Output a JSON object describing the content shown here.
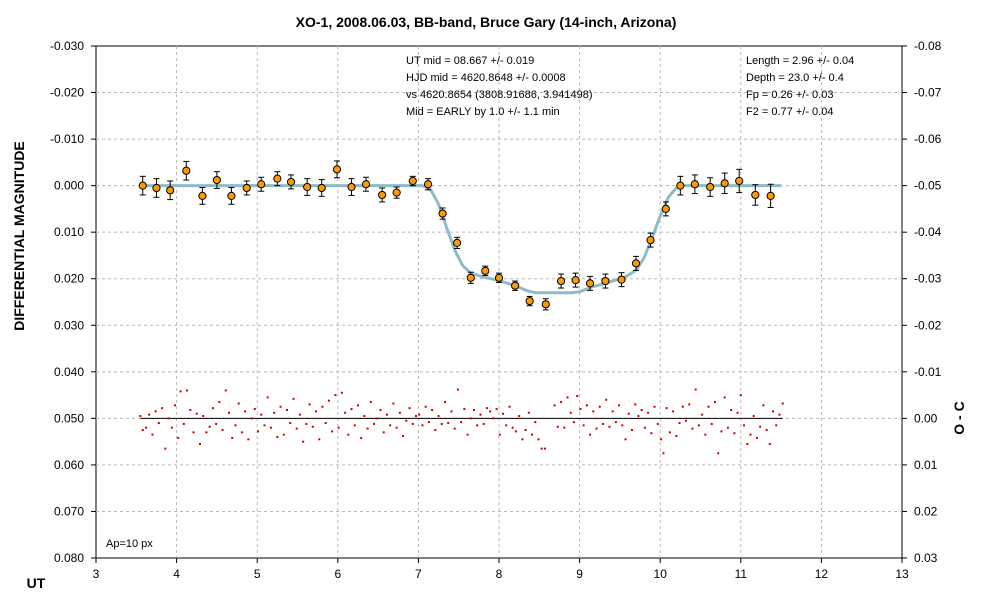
{
  "chart_data": {
    "type": "scatter",
    "title": "XO-1, 2008.06.03, BB-band, Bruce Gary (14-inch, Arizona)",
    "xlabel": "UT",
    "ylabel": "DIFFERENTIAL MAGNITUDE",
    "y2label": "O - C",
    "xlim": [
      3,
      13
    ],
    "ylim": [
      -0.03,
      0.08
    ],
    "y2lim": [
      -0.08,
      0.03
    ],
    "y_inverted": true,
    "grid": true,
    "x_ticks": [
      "3",
      "4",
      "5",
      "6",
      "7",
      "8",
      "9",
      "10",
      "11",
      "12",
      "13"
    ],
    "y_ticks": [
      "-0.030",
      "-0.020",
      "-0.010",
      "0.000",
      "0.010",
      "0.020",
      "0.030",
      "0.040",
      "0.050",
      "0.060",
      "0.070",
      "0.080"
    ],
    "y2_ticks": [
      "-0.08",
      "-0.07",
      "-0.06",
      "-0.05",
      "-0.04",
      "-0.03",
      "-0.02",
      "-0.01",
      "0.00",
      "0.01",
      "0.02",
      "0.03"
    ],
    "annotations": {
      "left": [
        "UT mid = 08.667 +/- 0.019",
        "HJD mid = 4620.8648 +/- 0.0008",
        "vs 4620.8654  (3808.91686, 3.941498)",
        "Mid = EARLY by 1.0 +/- 1.1 min"
      ],
      "right": [
        "Length = 2.96 +/- 0.04",
        "Depth = 23.0 +/- 0.4",
        "Fp = 0.26 +/- 0.03",
        "F2 = 0.77 +/- 0.04"
      ],
      "aperture": "Ap=10 px"
    },
    "series": [
      {
        "kind": "binned",
        "color": "#ff9900",
        "points": [
          {
            "x": 3.58,
            "y": 0.0,
            "e": 0.002
          },
          {
            "x": 3.75,
            "y": 0.0005,
            "e": 0.002
          },
          {
            "x": 3.92,
            "y": 0.001,
            "e": 0.002
          },
          {
            "x": 4.12,
            "y": -0.0032,
            "e": 0.002
          },
          {
            "x": 4.32,
            "y": 0.0022,
            "e": 0.0018
          },
          {
            "x": 4.5,
            "y": -0.0012,
            "e": 0.0018
          },
          {
            "x": 4.68,
            "y": 0.0022,
            "e": 0.0018
          },
          {
            "x": 4.87,
            "y": 0.0005,
            "e": 0.0015
          },
          {
            "x": 5.05,
            "y": -0.0003,
            "e": 0.0015
          },
          {
            "x": 5.25,
            "y": -0.0015,
            "e": 0.0015
          },
          {
            "x": 5.42,
            "y": -0.0008,
            "e": 0.0015
          },
          {
            "x": 5.62,
            "y": 0.0003,
            "e": 0.0018
          },
          {
            "x": 5.8,
            "y": 0.0005,
            "e": 0.0018
          },
          {
            "x": 5.99,
            "y": -0.0035,
            "e": 0.0018
          },
          {
            "x": 6.17,
            "y": 0.0003,
            "e": 0.0018
          },
          {
            "x": 6.35,
            "y": -0.0003,
            "e": 0.0015
          },
          {
            "x": 6.55,
            "y": 0.002,
            "e": 0.0015
          },
          {
            "x": 6.73,
            "y": 0.0015,
            "e": 0.0012
          },
          {
            "x": 6.93,
            "y": -0.001,
            "e": 0.001
          },
          {
            "x": 7.12,
            "y": -0.0003,
            "e": 0.0012
          },
          {
            "x": 7.3,
            "y": 0.006,
            "e": 0.0012
          },
          {
            "x": 7.48,
            "y": 0.0123,
            "e": 0.0012
          },
          {
            "x": 7.65,
            "y": 0.0198,
            "e": 0.0012
          },
          {
            "x": 7.83,
            "y": 0.0183,
            "e": 0.001
          },
          {
            "x": 8.0,
            "y": 0.0198,
            "e": 0.001
          },
          {
            "x": 8.2,
            "y": 0.0215,
            "e": 0.001
          },
          {
            "x": 8.38,
            "y": 0.0248,
            "e": 0.001
          },
          {
            "x": 8.58,
            "y": 0.0255,
            "e": 0.0012
          },
          {
            "x": 8.77,
            "y": 0.0205,
            "e": 0.0015
          },
          {
            "x": 8.95,
            "y": 0.0203,
            "e": 0.0015
          },
          {
            "x": 9.13,
            "y": 0.021,
            "e": 0.0015
          },
          {
            "x": 9.32,
            "y": 0.0205,
            "e": 0.0015
          },
          {
            "x": 9.52,
            "y": 0.0202,
            "e": 0.0015
          },
          {
            "x": 9.7,
            "y": 0.0167,
            "e": 0.0015
          },
          {
            "x": 9.88,
            "y": 0.0117,
            "e": 0.0015
          },
          {
            "x": 10.07,
            "y": 0.005,
            "e": 0.0015
          },
          {
            "x": 10.25,
            "y": 0.0,
            "e": 0.002
          },
          {
            "x": 10.43,
            "y": -0.0003,
            "e": 0.002
          },
          {
            "x": 10.62,
            "y": 0.0003,
            "e": 0.002
          },
          {
            "x": 10.8,
            "y": -0.0005,
            "e": 0.0022
          },
          {
            "x": 10.98,
            "y": -0.001,
            "e": 0.0025
          },
          {
            "x": 11.18,
            "y": 0.002,
            "e": 0.0022
          },
          {
            "x": 11.37,
            "y": 0.0022,
            "e": 0.0025
          }
        ]
      },
      {
        "kind": "model",
        "color": "#8dbcc8",
        "points": [
          [
            3.55,
            0.0
          ],
          [
            7.05,
            0.0
          ],
          [
            7.15,
            0.0008
          ],
          [
            7.25,
            0.004
          ],
          [
            7.35,
            0.009
          ],
          [
            7.45,
            0.0138
          ],
          [
            7.55,
            0.0172
          ],
          [
            7.65,
            0.0188
          ],
          [
            7.8,
            0.0196
          ],
          [
            8.0,
            0.0204
          ],
          [
            8.2,
            0.0215
          ],
          [
            8.35,
            0.0226
          ],
          [
            8.45,
            0.023
          ],
          [
            8.9,
            0.023
          ],
          [
            9.0,
            0.0228
          ],
          [
            9.15,
            0.0218
          ],
          [
            9.35,
            0.0208
          ],
          [
            9.55,
            0.0198
          ],
          [
            9.7,
            0.0182
          ],
          [
            9.8,
            0.0155
          ],
          [
            9.9,
            0.0112
          ],
          [
            10.0,
            0.0065
          ],
          [
            10.1,
            0.0025
          ],
          [
            10.2,
            0.0005
          ],
          [
            10.3,
            0.0
          ],
          [
            11.5,
            0.0
          ]
        ]
      },
      {
        "kind": "residuals",
        "color": "#cc0000",
        "zero": 0.0,
        "points": [
          [
            3.55,
            -0.0005
          ],
          [
            3.58,
            0.0025
          ],
          [
            3.62,
            0.002
          ],
          [
            3.66,
            -0.0008
          ],
          [
            3.7,
            0.0035
          ],
          [
            3.74,
            -0.0015
          ],
          [
            3.78,
            0.001
          ],
          [
            3.82,
            -0.0022
          ],
          [
            3.86,
            0.0065
          ],
          [
            3.9,
            0.0
          ],
          [
            3.94,
            0.002
          ],
          [
            3.98,
            -0.0028
          ],
          [
            4.02,
            0.0042
          ],
          [
            4.05,
            -0.0058
          ],
          [
            4.09,
            0.0012
          ],
          [
            4.13,
            -0.006
          ],
          [
            4.17,
            -0.0018
          ],
          [
            4.21,
            0.003
          ],
          [
            4.25,
            -0.001
          ],
          [
            4.29,
            0.0055
          ],
          [
            4.33,
            -0.0005
          ],
          [
            4.37,
            0.003
          ],
          [
            4.41,
            0.0018
          ],
          [
            4.45,
            -0.0022
          ],
          [
            4.49,
            0.0012
          ],
          [
            4.53,
            -0.0035
          ],
          [
            4.57,
            0.0025
          ],
          [
            4.61,
            -0.006
          ],
          [
            4.65,
            -0.0012
          ],
          [
            4.69,
            0.0042
          ],
          [
            4.73,
            0.0015
          ],
          [
            4.77,
            -0.0032
          ],
          [
            4.81,
            0.003
          ],
          [
            4.85,
            -0.0015
          ],
          [
            4.89,
            0.0045
          ],
          [
            4.93,
            0.0
          ],
          [
            4.97,
            -0.002
          ],
          [
            5.01,
            0.0028
          ],
          [
            5.05,
            -0.0008
          ],
          [
            5.09,
            0.0015
          ],
          [
            5.13,
            -0.0045
          ],
          [
            5.17,
            0.002
          ],
          [
            5.21,
            -0.0012
          ],
          [
            5.25,
            0.004
          ],
          [
            5.29,
            -0.0025
          ],
          [
            5.33,
            0.0035
          ],
          [
            5.37,
            -0.0018
          ],
          [
            5.41,
            0.001
          ],
          [
            5.45,
            -0.0042
          ],
          [
            5.49,
            0.0022
          ],
          [
            5.53,
            -0.0008
          ],
          [
            5.57,
            0.005
          ],
          [
            5.61,
            0.0012
          ],
          [
            5.65,
            -0.003
          ],
          [
            5.69,
            0.0018
          ],
          [
            5.73,
            -0.0015
          ],
          [
            5.77,
            0.0045
          ],
          [
            5.81,
            -0.0025
          ],
          [
            5.85,
            0.001
          ],
          [
            5.89,
            -0.0038
          ],
          [
            5.93,
            0.0028
          ],
          [
            5.97,
            -0.005
          ],
          [
            6.01,
            0.002
          ],
          [
            6.05,
            -0.0055
          ],
          [
            6.09,
            -0.0012
          ],
          [
            6.13,
            0.0035
          ],
          [
            6.17,
            -0.002
          ],
          [
            6.21,
            0.0015
          ],
          [
            6.25,
            -0.0028
          ],
          [
            6.29,
            0.0042
          ],
          [
            6.33,
            -0.0005
          ],
          [
            6.37,
            0.0022
          ],
          [
            6.41,
            -0.0035
          ],
          [
            6.45,
            0.0012
          ],
          [
            6.49,
            0.0
          ],
          [
            6.53,
            -0.0018
          ],
          [
            6.57,
            0.003
          ],
          [
            6.61,
            -0.0008
          ],
          [
            6.65,
            0.0015
          ],
          [
            6.69,
            -0.0032
          ],
          [
            6.73,
            0.002
          ],
          [
            6.77,
            -0.0012
          ],
          [
            6.81,
            0.0038
          ],
          [
            6.85,
            0.0005
          ],
          [
            6.89,
            -0.0022
          ],
          [
            6.93,
            0.0012
          ],
          [
            6.97,
            -0.0005
          ],
          [
            7.01,
            -0.0008
          ],
          [
            7.05,
            0.0015
          ],
          [
            7.09,
            -0.0025
          ],
          [
            7.13,
            0.0008
          ],
          [
            7.17,
            -0.0018
          ],
          [
            7.21,
            0.0025
          ],
          [
            7.25,
            -0.0005
          ],
          [
            7.29,
            0.0012
          ],
          [
            7.33,
            -0.0035
          ],
          [
            7.37,
            0.001
          ],
          [
            7.41,
            -0.0015
          ],
          [
            7.45,
            0.0022
          ],
          [
            7.49,
            -0.0062
          ],
          [
            7.53,
            0.0008
          ],
          [
            7.57,
            -0.002
          ],
          [
            7.61,
            0.0035
          ],
          [
            7.65,
            0.0
          ],
          [
            7.69,
            -0.0018
          ],
          [
            7.73,
            0.0015
          ],
          [
            7.77,
            -0.0008
          ],
          [
            7.81,
            0.0012
          ],
          [
            7.85,
            -0.0022
          ],
          [
            7.89,
            -0.0015
          ],
          [
            7.93,
            0.0
          ],
          [
            7.97,
            -0.002
          ],
          [
            8.01,
            0.0035
          ],
          [
            8.05,
            -0.001
          ],
          [
            8.09,
            0.0015
          ],
          [
            8.13,
            -0.0025
          ],
          [
            8.17,
            0.002
          ],
          [
            8.21,
            0.0028
          ],
          [
            8.25,
            -0.0005
          ],
          [
            8.29,
            0.0045
          ],
          [
            8.33,
            0.0025
          ],
          [
            8.37,
            -0.0012
          ],
          [
            8.41,
            0.0035
          ],
          [
            8.45,
            0.0008
          ],
          [
            8.49,
            0.0045
          ],
          [
            8.53,
            0.0065
          ],
          [
            8.57,
            0.0065
          ],
          [
            8.69,
            -0.0028
          ],
          [
            8.73,
            0.0018
          ],
          [
            8.77,
            -0.0035
          ],
          [
            8.81,
            0.002
          ],
          [
            8.85,
            -0.0045
          ],
          [
            8.89,
            -0.0012
          ],
          [
            8.93,
            0.0008
          ],
          [
            8.97,
            -0.0048
          ],
          [
            9.01,
            -0.002
          ],
          [
            9.05,
            0.0015
          ],
          [
            9.09,
            -0.0028
          ],
          [
            9.13,
            0.0035
          ],
          [
            9.17,
            -0.0015
          ],
          [
            9.21,
            0.0022
          ],
          [
            9.25,
            -0.0025
          ],
          [
            9.29,
            0.0012
          ],
          [
            9.33,
            -0.004
          ],
          [
            9.37,
            0.0018
          ],
          [
            9.41,
            -0.0015
          ],
          [
            9.45,
            0.0008
          ],
          [
            9.49,
            -0.0028
          ],
          [
            9.53,
            0.0015
          ],
          [
            9.57,
            0.0045
          ],
          [
            9.61,
            -0.001
          ],
          [
            9.65,
            0.0025
          ],
          [
            9.69,
            -0.003
          ],
          [
            9.73,
            -0.0005
          ],
          [
            9.77,
            -0.0018
          ],
          [
            9.81,
            0.002
          ],
          [
            9.85,
            -0.0012
          ],
          [
            9.89,
            0.0032
          ],
          [
            9.93,
            -0.0025
          ],
          [
            9.97,
            0.0012
          ],
          [
            10.01,
            0.0045
          ],
          [
            10.04,
            0.0075
          ],
          [
            10.08,
            -0.0022
          ],
          [
            10.12,
            0.003
          ],
          [
            10.16,
            -0.0015
          ],
          [
            10.2,
            0.0038
          ],
          [
            10.24,
            0.001
          ],
          [
            10.28,
            -0.0025
          ],
          [
            10.32,
            0.0005
          ],
          [
            10.36,
            -0.003
          ],
          [
            10.4,
            0.0022
          ],
          [
            10.44,
            -0.0062
          ],
          [
            10.48,
            0.0015
          ],
          [
            10.52,
            -0.0008
          ],
          [
            10.56,
            0.0035
          ],
          [
            10.6,
            -0.0025
          ],
          [
            10.64,
            0.0012
          ],
          [
            10.68,
            -0.0035
          ],
          [
            10.72,
            0.0075
          ],
          [
            10.76,
            0.0028
          ],
          [
            10.8,
            -0.0045
          ],
          [
            10.84,
            0.002
          ],
          [
            10.88,
            -0.0018
          ],
          [
            10.92,
            0.0032
          ],
          [
            10.96,
            -0.0012
          ],
          [
            11.0,
            -0.005
          ],
          [
            11.04,
            0.0015
          ],
          [
            11.08,
            0.0055
          ],
          [
            11.12,
            0.0035
          ],
          [
            11.16,
            -0.0005
          ],
          [
            11.2,
            0.0042
          ],
          [
            11.24,
            0.0018
          ],
          [
            11.28,
            -0.0028
          ],
          [
            11.32,
            0.0025
          ],
          [
            11.36,
            0.0055
          ],
          [
            11.4,
            -0.0015
          ],
          [
            11.44,
            0.0015
          ],
          [
            11.48,
            -0.0008
          ],
          [
            11.52,
            -0.0032
          ]
        ]
      }
    ]
  }
}
